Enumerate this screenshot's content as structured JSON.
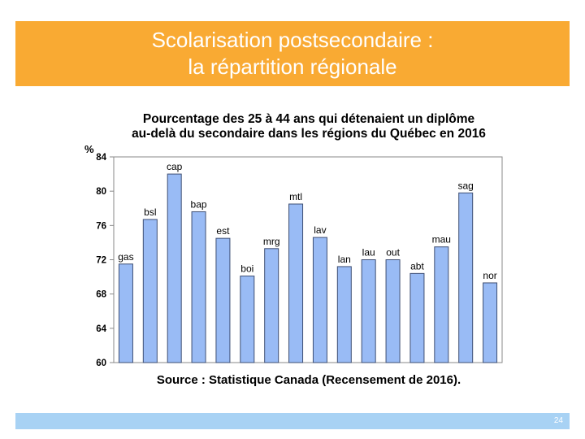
{
  "slide": {
    "title_line1": "Scolarisation postsecondaire :",
    "title_line2": "la répartition régionale",
    "page_number": "24"
  },
  "colors": {
    "banner": "#F9AA33",
    "footer": "#A8D2F4",
    "bar_fill": "#99BBF5",
    "bar_stroke": "#3F4F74"
  },
  "chart_data": {
    "type": "bar",
    "title_line1": "Pourcentage des 25 à 44 ans qui détenaient un diplôme",
    "title_line2": "au-delà du secondaire dans les régions du Québec en 2016",
    "ylabel": "%",
    "ylim": [
      60,
      84
    ],
    "yticks": [
      "60",
      "64",
      "68",
      "72",
      "76",
      "80",
      "84"
    ],
    "categories": [
      "gas",
      "bsl",
      "cap",
      "bap",
      "est",
      "boi",
      "mrg",
      "mtl",
      "lav",
      "lan",
      "lau",
      "out",
      "abt",
      "mau",
      "sag",
      "nor"
    ],
    "values": [
      71.5,
      76.7,
      82.0,
      77.6,
      74.5,
      70.1,
      73.3,
      78.5,
      74.6,
      71.2,
      72.0,
      72.0,
      70.4,
      73.5,
      79.8,
      69.3
    ],
    "grid": false,
    "legend": "none",
    "source": "Source : Statistique Canada (Recensement de 2016)."
  }
}
